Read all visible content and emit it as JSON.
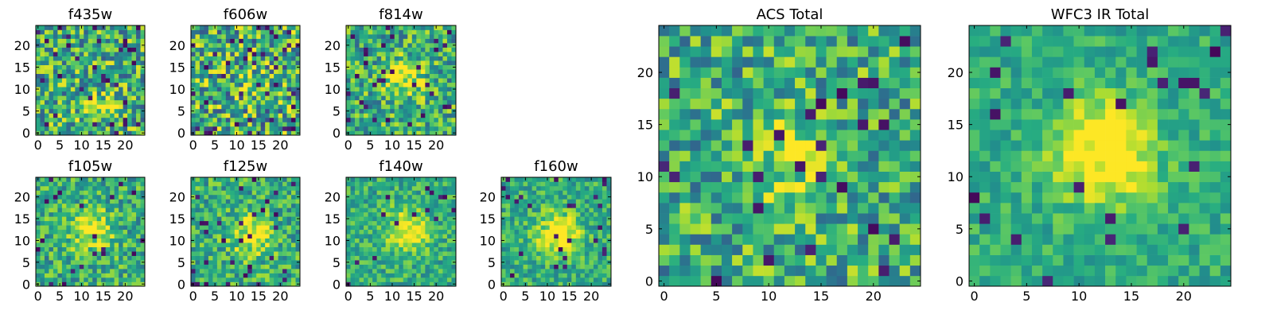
{
  "chart_data": [
    {
      "type": "heatmap",
      "title": "f435w",
      "grid_size": 25,
      "xticks": [
        0,
        5,
        10,
        15,
        20
      ],
      "yticks": [
        0,
        5,
        10,
        15,
        20
      ],
      "colormap": "viridis",
      "blob": {
        "x": 13,
        "y": 6,
        "amplitude": 0.15
      },
      "noise": 0.35,
      "dark_pixel_fraction": 0.05
    },
    {
      "type": "heatmap",
      "title": "f606w",
      "grid_size": 25,
      "xticks": [
        0,
        5,
        10,
        15,
        20
      ],
      "yticks": [
        0,
        5,
        10,
        15,
        20
      ],
      "colormap": "viridis",
      "blob": {
        "x": 12,
        "y": 12,
        "amplitude": 0.05
      },
      "noise": 0.4,
      "dark_pixel_fraction": 0.07
    },
    {
      "type": "heatmap",
      "title": "f814w",
      "grid_size": 25,
      "xticks": [
        0,
        5,
        10,
        15,
        20
      ],
      "yticks": [
        0,
        5,
        10,
        15,
        20
      ],
      "colormap": "viridis",
      "blob": {
        "x": 12,
        "y": 12,
        "amplitude": 0.3
      },
      "noise": 0.3,
      "dark_pixel_fraction": 0.04
    },
    {
      "type": "heatmap",
      "title": "f105w",
      "grid_size": 25,
      "xticks": [
        0,
        5,
        10,
        15,
        20
      ],
      "yticks": [
        0,
        5,
        10,
        15,
        20
      ],
      "colormap": "viridis",
      "blob": {
        "x": 12,
        "y": 12,
        "amplitude": 0.4
      },
      "noise": 0.25,
      "dark_pixel_fraction": 0.03
    },
    {
      "type": "heatmap",
      "title": "f125w",
      "grid_size": 25,
      "xticks": [
        0,
        5,
        10,
        15,
        20
      ],
      "yticks": [
        0,
        5,
        10,
        15,
        20
      ],
      "colormap": "viridis",
      "blob": {
        "x": 13,
        "y": 11,
        "amplitude": 0.4
      },
      "noise": 0.25,
      "dark_pixel_fraction": 0.04
    },
    {
      "type": "heatmap",
      "title": "f140w",
      "grid_size": 25,
      "xticks": [
        0,
        5,
        10,
        15,
        20
      ],
      "yticks": [
        0,
        5,
        10,
        15,
        20
      ],
      "colormap": "viridis",
      "blob": {
        "x": 13,
        "y": 12,
        "amplitude": 0.4
      },
      "noise": 0.2,
      "dark_pixel_fraction": 0.02
    },
    {
      "type": "heatmap",
      "title": "f160w",
      "grid_size": 25,
      "xticks": [
        0,
        5,
        10,
        15,
        20
      ],
      "yticks": [
        0,
        5,
        10,
        15,
        20
      ],
      "colormap": "viridis",
      "blob": {
        "x": 12,
        "y": 11,
        "amplitude": 0.5
      },
      "noise": 0.2,
      "dark_pixel_fraction": 0.05
    },
    {
      "type": "heatmap",
      "title": "ACS Total",
      "grid_size": 25,
      "xticks": [
        0,
        5,
        10,
        15,
        20
      ],
      "yticks": [
        0,
        5,
        10,
        15,
        20
      ],
      "colormap": "viridis",
      "blob": {
        "x": 12,
        "y": 12,
        "amplitude": 0.25
      },
      "noise": 0.3,
      "dark_pixel_fraction": 0.04
    },
    {
      "type": "heatmap",
      "title": "WFC3 IR Total",
      "grid_size": 25,
      "xticks": [
        0,
        5,
        10,
        15,
        20
      ],
      "yticks": [
        0,
        5,
        10,
        15,
        20
      ],
      "colormap": "viridis",
      "blob": {
        "x": 12,
        "y": 12,
        "amplitude": 0.55
      },
      "noise": 0.15,
      "dark_pixel_fraction": 0.03
    }
  ]
}
